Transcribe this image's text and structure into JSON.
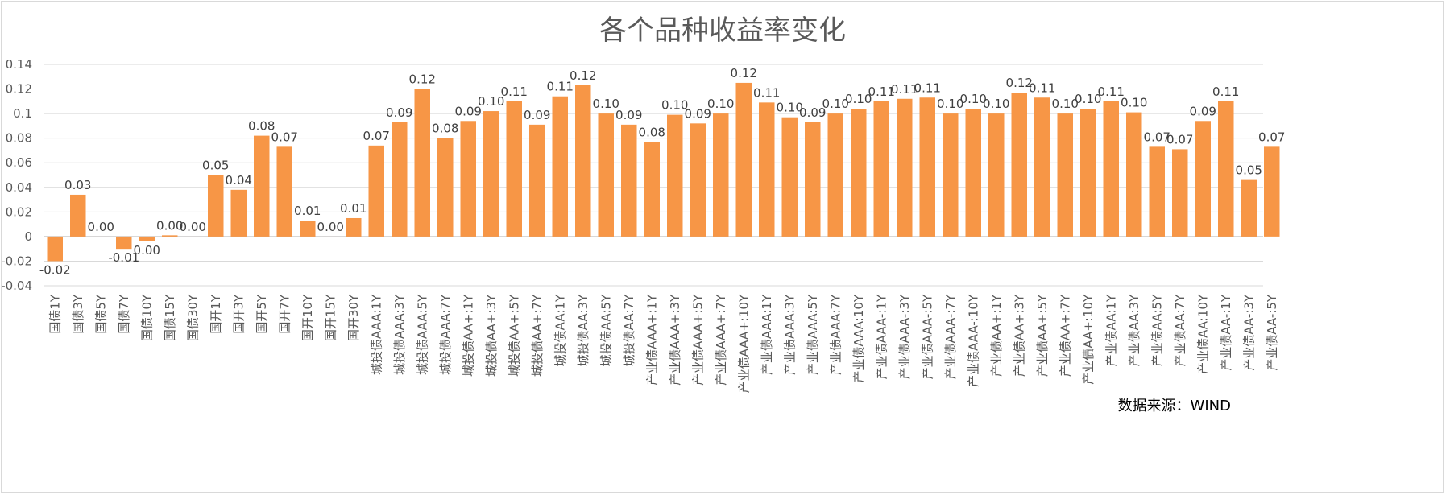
{
  "chart_data": {
    "type": "bar",
    "title": "各个品种收益率变化",
    "source": "数据来源：WIND",
    "color": "#F79646",
    "ylim": [
      -0.04,
      0.14
    ],
    "yticks": [
      -0.04,
      -0.02,
      0,
      0.02,
      0.04,
      0.06,
      0.08,
      0.1,
      0.12,
      0.14
    ],
    "ytick_labels": [
      "-0.04",
      "-0.02",
      "0",
      "0.02",
      "0.04",
      "0.06",
      "0.08",
      "0.1",
      "0.12",
      "0.14"
    ],
    "grid": true,
    "categories": [
      "国债1Y",
      "国债3Y",
      "国债5Y",
      "国债7Y",
      "国债10Y",
      "国债15Y",
      "国债30Y",
      "国开1Y",
      "国开3Y",
      "国开5Y",
      "国开7Y",
      "国开10Y",
      "国开15Y",
      "国开30Y",
      "城投债AAA:1Y",
      "城投债AAA:3Y",
      "城投债AAA:5Y",
      "城投债AAA:7Y",
      "城投债AA+:1Y",
      "城投债AA+:3Y",
      "城投债AA+:5Y",
      "城投债AA+:7Y",
      "城投债AA:1Y",
      "城投债AA:3Y",
      "城投债AA:5Y",
      "城投债AA:7Y",
      "产业债AAA+:1Y",
      "产业债AAA+:3Y",
      "产业债AAA+:5Y",
      "产业债AAA+:7Y",
      "产业债AAA+:10Y",
      "产业债AAA:1Y",
      "产业债AAA:3Y",
      "产业债AAA:5Y",
      "产业债AAA:7Y",
      "产业债AAA:10Y",
      "产业债AAA-:1Y",
      "产业债AAA-:3Y",
      "产业债AAA-:5Y",
      "产业债AAA-:7Y",
      "产业债AAA-:10Y",
      "产业债AA+:1Y",
      "产业债AA+:3Y",
      "产业债AA+:5Y",
      "产业债AA+:7Y",
      "产业债AA+:10Y",
      "产业债AA:1Y",
      "产业债AA:3Y",
      "产业债AA:5Y",
      "产业债AA:7Y",
      "产业债AA:10Y",
      "产业债AA-:1Y",
      "产业债AA-:3Y",
      "产业债AA-:5Y"
    ],
    "values": [
      -0.02,
      0.034,
      0,
      -0.01,
      -0.004,
      0.001,
      0,
      0.05,
      0.038,
      0.082,
      0.073,
      0.013,
      0,
      0.015,
      0.074,
      0.093,
      0.12,
      0.08,
      0.094,
      0.102,
      0.11,
      0.091,
      0.114,
      0.123,
      0.1,
      0.091,
      0.077,
      0.099,
      0.092,
      0.1,
      0.125,
      0.109,
      0.097,
      0.093,
      0.1,
      0.104,
      0.11,
      0.112,
      0.113,
      0.1,
      0.104,
      0.1,
      0.117,
      0.113,
      0.1,
      0.104,
      0.11,
      0.101,
      0.073,
      0.071,
      0.094,
      0.11,
      0.046,
      0.073
    ],
    "data_labels": [
      "-0.02",
      "0.03",
      "0.00",
      "-0.01",
      "0.00",
      "0.00",
      "0.00",
      "0.05",
      "0.04",
      "0.08",
      "0.07",
      "0.01",
      "0.00",
      "0.01",
      "0.07",
      "0.09",
      "0.12",
      "0.08",
      "0.09",
      "0.10",
      "0.11",
      "0.09",
      "0.11",
      "0.12",
      "0.10",
      "0.09",
      "0.08",
      "0.10",
      "0.09",
      "0.10",
      "0.12",
      "0.11",
      "0.10",
      "0.09",
      "0.10",
      "0.10",
      "0.11",
      "0.11",
      "0.11",
      "0.10",
      "0.10",
      "0.10",
      "0.12",
      "0.11",
      "0.10",
      "0.10",
      "0.11",
      "0.10",
      "0.07",
      "0.07",
      "0.09",
      "0.11",
      "0.05",
      "0.07"
    ]
  }
}
